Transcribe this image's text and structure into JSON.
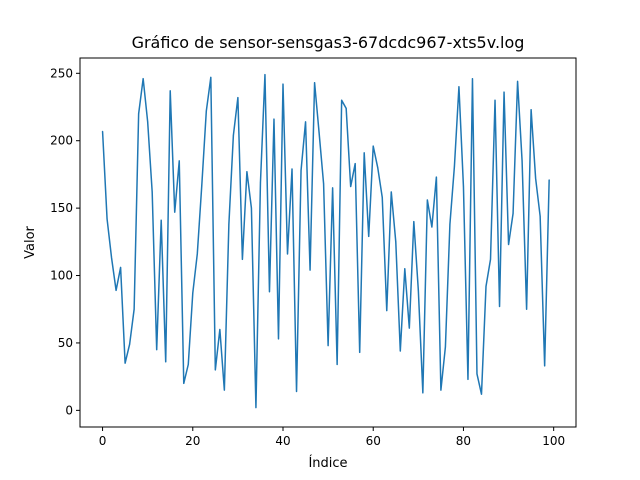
{
  "chart_data": {
    "type": "line",
    "title": "Gráfico de sensor-sensgas3-67dcdc967-xts5v.log",
    "xlabel": "Índice",
    "ylabel": "Valor",
    "xlim": [
      -5,
      104.95
    ],
    "ylim": [
      -12.35,
      261.35
    ],
    "xticks": [
      0,
      20,
      40,
      60,
      80,
      100
    ],
    "yticks": [
      0,
      50,
      100,
      150,
      200,
      250
    ],
    "grid": false,
    "line_color": "#1f77b4",
    "series": [
      {
        "x": [
          0,
          1,
          2,
          3,
          4,
          5,
          6,
          7,
          8,
          9,
          10,
          11,
          12,
          13,
          14,
          15,
          16,
          17,
          18,
          19,
          20,
          21,
          22,
          23,
          24,
          25,
          26,
          27,
          28,
          29,
          30,
          31,
          32,
          33,
          34,
          35,
          36,
          37,
          38,
          39,
          40,
          41,
          42,
          43,
          44,
          45,
          46,
          47,
          48,
          49,
          50,
          51,
          52,
          53,
          54,
          55,
          56,
          57,
          58,
          59,
          60,
          61,
          62,
          63,
          64,
          65,
          66,
          67,
          68,
          69,
          70,
          71,
          72,
          73,
          74,
          75,
          76,
          77,
          78,
          79,
          80,
          81,
          82,
          83,
          84,
          85,
          86,
          87,
          88,
          89,
          90,
          91,
          92,
          93,
          94,
          95,
          96,
          97,
          98,
          99
        ],
        "values": [
          207,
          142,
          113,
          89,
          106,
          35,
          49,
          75,
          220,
          246,
          214,
          162,
          45,
          141,
          36,
          237,
          147,
          185,
          20,
          34,
          87,
          116,
          167,
          222,
          247,
          30,
          60,
          15,
          138,
          204,
          232,
          112,
          177,
          150,
          2,
          169,
          249,
          88,
          216,
          53,
          242,
          116,
          179,
          14,
          178,
          214,
          104,
          243,
          206,
          168,
          48,
          165,
          34,
          230,
          224,
          166,
          183,
          43,
          191,
          129,
          196,
          180,
          158,
          74,
          162,
          125,
          44,
          105,
          61,
          140,
          89,
          13,
          156,
          136,
          173,
          15,
          47,
          138,
          181,
          240,
          166,
          23,
          246,
          27,
          12,
          92,
          112,
          230,
          77,
          236,
          123,
          146,
          244,
          185,
          75,
          223,
          172,
          144,
          33,
          171
        ]
      }
    ]
  }
}
